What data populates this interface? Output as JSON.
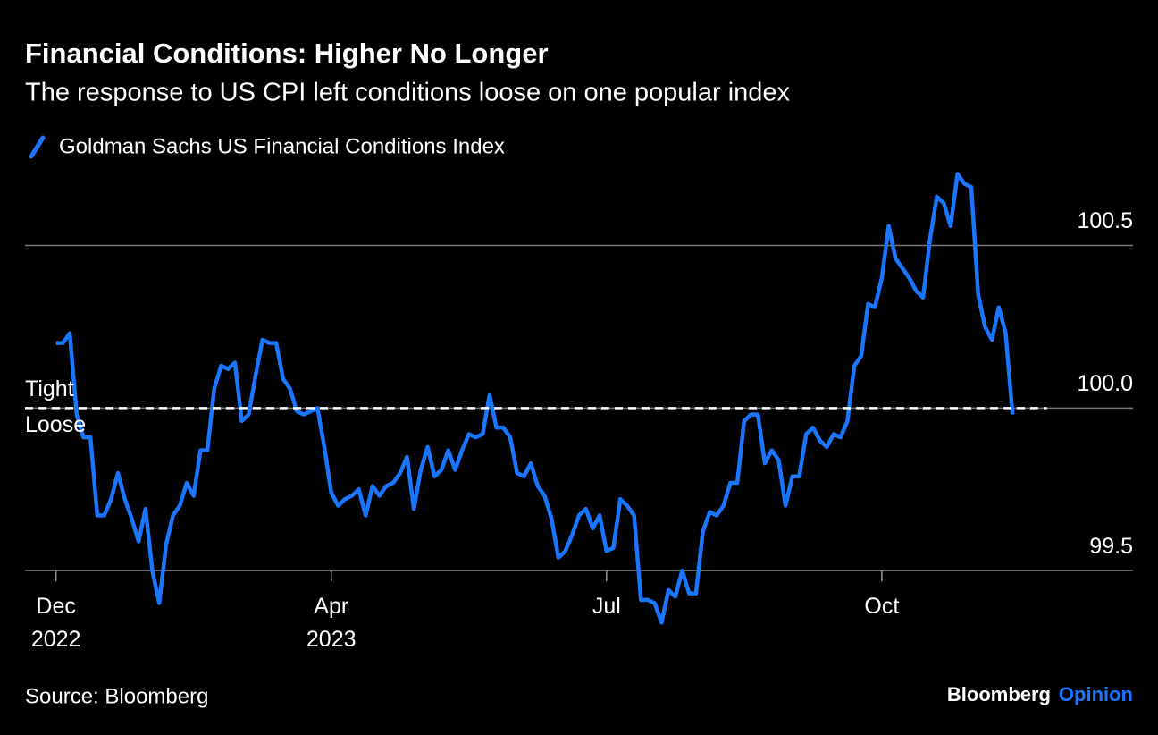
{
  "chart_data": {
    "type": "line",
    "title": "Financial Conditions: Higher No Longer",
    "subtitle": "The response to US CPI left conditions loose on one popular index",
    "source": "Source: Bloomberg",
    "brand": [
      "Bloomberg",
      "Opinion"
    ],
    "series": [
      {
        "name": "Goldman Sachs US Financial Conditions Index",
        "color": "#1a75ff",
        "values": [
          100.2,
          100.2,
          100.23,
          99.98,
          99.91,
          99.91,
          99.67,
          99.67,
          99.72,
          99.8,
          99.72,
          99.66,
          99.59,
          99.69,
          99.5,
          99.4,
          99.58,
          99.67,
          99.7,
          99.77,
          99.73,
          99.87,
          99.87,
          100.06,
          100.13,
          100.12,
          100.14,
          99.96,
          99.98,
          100.1,
          100.21,
          100.2,
          100.2,
          100.09,
          100.06,
          99.99,
          99.98,
          99.99,
          100.0,
          99.88,
          99.74,
          99.7,
          99.72,
          99.73,
          99.75,
          99.67,
          99.76,
          99.73,
          99.76,
          99.77,
          99.8,
          99.85,
          99.69,
          99.81,
          99.88,
          99.79,
          99.81,
          99.87,
          99.81,
          99.87,
          99.92,
          99.91,
          99.92,
          100.04,
          99.94,
          99.94,
          99.91,
          99.8,
          99.79,
          99.83,
          99.76,
          99.73,
          99.66,
          99.54,
          99.56,
          99.61,
          99.67,
          99.69,
          99.63,
          99.67,
          99.56,
          99.57,
          99.72,
          99.7,
          99.67,
          99.41,
          99.41,
          99.4,
          99.34,
          99.44,
          99.42,
          99.5,
          99.43,
          99.43,
          99.62,
          99.68,
          99.67,
          99.7,
          99.77,
          99.77,
          99.96,
          99.98,
          99.98,
          99.83,
          99.87,
          99.84,
          99.7,
          99.79,
          99.79,
          99.92,
          99.94,
          99.9,
          99.88,
          99.92,
          99.91,
          99.96,
          100.13,
          100.16,
          100.32,
          100.31,
          100.4,
          100.56,
          100.46,
          100.43,
          100.4,
          100.36,
          100.34,
          100.52,
          100.65,
          100.63,
          100.56,
          100.72,
          100.69,
          100.68,
          100.35,
          100.25,
          100.21,
          100.31,
          100.23,
          99.98
        ]
      }
    ],
    "xlim": [
      -4.5,
      156.5
    ],
    "xticks": [
      {
        "value": 0,
        "label": "Dec"
      },
      {
        "value": 40,
        "label": "Apr"
      },
      {
        "value": 80,
        "label": "Jul"
      },
      {
        "value": 120,
        "label": "Oct"
      }
    ],
    "year_labels": [
      {
        "value": 0,
        "label": "2022"
      },
      {
        "value": 40,
        "label": "2023"
      }
    ],
    "ylim": [
      99.33,
      100.76
    ],
    "yticks": [
      99.5,
      {
        "value": 100,
        "label": "100.0"
      },
      100.5
    ],
    "reference_line": {
      "value": 100,
      "above": "Tight",
      "below": "Loose"
    },
    "grid": true
  }
}
